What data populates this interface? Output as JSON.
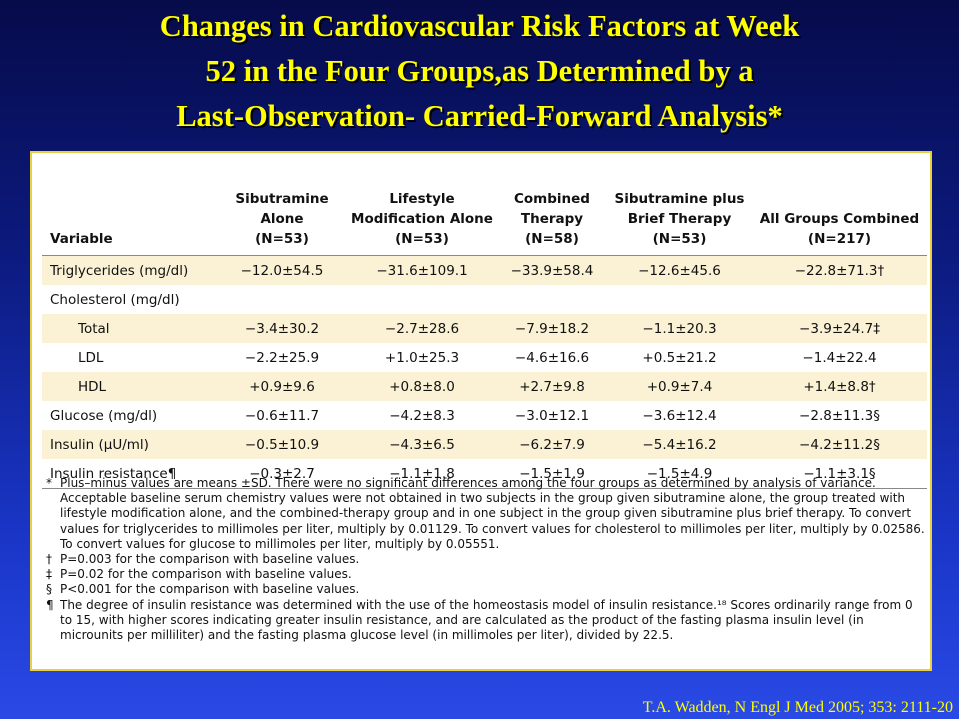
{
  "title": {
    "line1": "Changes in Cardiovascular Risk Factors at Week",
    "line2": "52 in the Four Groups,as Determined by a",
    "line3": "Last-Observation- Carried-Forward Analysis*"
  },
  "table": {
    "headers": {
      "variable": "Variable",
      "col1_l1": "Sibutramine",
      "col1_l2": "Alone",
      "col1_l3": "(N=53)",
      "col2_l1": "Lifestyle",
      "col2_l2": "Modification Alone",
      "col2_l3": "(N=53)",
      "col3_l1": "Combined",
      "col3_l2": "Therapy",
      "col3_l3": "(N=58)",
      "col4_l1": "Sibutramine plus",
      "col4_l2": "Brief Therapy",
      "col4_l3": "(N=53)",
      "col5_l1": "All Groups Combined",
      "col5_l2": "(N=217)"
    },
    "rows": [
      {
        "variable": "Triglycerides (mg/dl)",
        "c1": "−12.0±54.5",
        "c2": "−31.6±109.1",
        "c3": "−33.9±58.4",
        "c4": "−12.6±45.6",
        "c5": "−22.8±71.3†"
      },
      {
        "variable": "Cholesterol (mg/dl)",
        "c1": "",
        "c2": "",
        "c3": "",
        "c4": "",
        "c5": ""
      },
      {
        "variable": "Total",
        "c1": "−3.4±30.2",
        "c2": "−2.7±28.6",
        "c3": "−7.9±18.2",
        "c4": "−1.1±20.3",
        "c5": "−3.9±24.7‡"
      },
      {
        "variable": "LDL",
        "c1": "−2.2±25.9",
        "c2": "+1.0±25.3",
        "c3": "−4.6±16.6",
        "c4": "+0.5±21.2",
        "c5": "−1.4±22.4"
      },
      {
        "variable": "HDL",
        "c1": "+0.9±9.6",
        "c2": "+0.8±8.0",
        "c3": "+2.7±9.8",
        "c4": "+0.9±7.4",
        "c5": "+1.4±8.8†"
      },
      {
        "variable": "Glucose (mg/dl)",
        "c1": "−0.6±11.7",
        "c2": "−4.2±8.3",
        "c3": "−3.0±12.1",
        "c4": "−3.6±12.4",
        "c5": "−2.8±11.3§"
      },
      {
        "variable": "Insulin (μU/ml)",
        "c1": "−0.5±10.9",
        "c2": "−4.3±6.5",
        "c3": "−6.2±7.9",
        "c4": "−5.4±16.2",
        "c5": "−4.2±11.2§"
      },
      {
        "variable": "Insulin resistance¶",
        "c1": "−0.3±2.7",
        "c2": "−1.1±1.8",
        "c3": "−1.5±1.9",
        "c4": "−1.5±4.9",
        "c5": "−1.1±3.1§"
      }
    ]
  },
  "notes": [
    {
      "mark": "*",
      "text": "Plus–minus values are means ±SD. There were no significant differences among the four groups as determined by analysis of variance. Acceptable baseline serum chemistry values were not obtained in two subjects in the group given sibutramine alone, the group treated with lifestyle modification alone, and the combined-therapy group and in one subject in the group given sibutramine plus brief therapy. To convert values for triglycerides to millimoles per liter, multiply by 0.01129. To convert values for cholesterol to millimoles per liter, multiply by 0.02586. To convert values for glucose to millimoles per liter, multiply by 0.05551."
    },
    {
      "mark": "†",
      "text": "P=0.003 for the comparison with baseline values."
    },
    {
      "mark": "‡",
      "text": "P=0.02 for the comparison with baseline values."
    },
    {
      "mark": "§",
      "text": "P<0.001 for the comparison with baseline values."
    },
    {
      "mark": "¶",
      "text": "The degree of insulin resistance was determined with the use of the homeostasis model of insulin resistance.¹⁸ Scores ordinarily range from 0 to 15, with higher scores indicating greater insulin resistance, and are calculated as the product of the fasting plasma insulin level (in microunits per milliliter) and the fasting plasma glucose level (in millimoles per liter), divided by 22.5."
    }
  ],
  "citation": "T.A. Wadden, N Engl J Med 2005; 353: 2111-20"
}
